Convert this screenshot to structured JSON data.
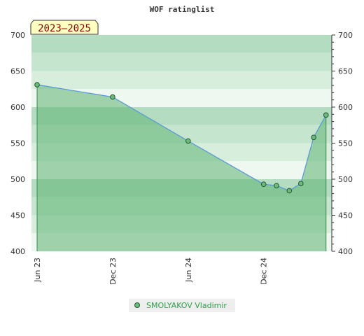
{
  "chart_data": {
    "type": "area",
    "title": "WOF ratinglist",
    "range_badge": "2023–2025",
    "ylim": [
      400,
      700
    ],
    "y_ticks": [
      400,
      450,
      500,
      550,
      600,
      650,
      700
    ],
    "y_tick_labels": [
      "400",
      "450",
      "500",
      "550",
      "600",
      "650",
      "700"
    ],
    "x_range": [
      "2023-06-01",
      "2025-05-15"
    ],
    "x_ticks": [
      "2023-06-01",
      "2023-12-01",
      "2024-06-01",
      "2024-12-01"
    ],
    "x_tick_labels": [
      "Jun 23",
      "Dec 23",
      "Jun 24",
      "Dec 24"
    ],
    "series": [
      {
        "name": "SMOLYAKOV Vladimir",
        "x": [
          "2023-06-01",
          "2023-12-01",
          "2024-06-01",
          "2024-12-01",
          "2025-01-01",
          "2025-02-01",
          "2025-03-01",
          "2025-04-01",
          "2025-05-01"
        ],
        "values": [
          631,
          614,
          553,
          493,
          491,
          484,
          494,
          558,
          589
        ]
      }
    ],
    "legend_position": "bottom-center",
    "colors": {
      "line": "#5b9bd5",
      "area": "#5fb572",
      "marker": "#6dbb7a",
      "band_dark": "#8fcc9f",
      "band_light": "#d6ecdc",
      "legend_text": "#2e9e4a",
      "badge_bg": "#ffffc0",
      "badge_text": "#8b0000"
    }
  }
}
